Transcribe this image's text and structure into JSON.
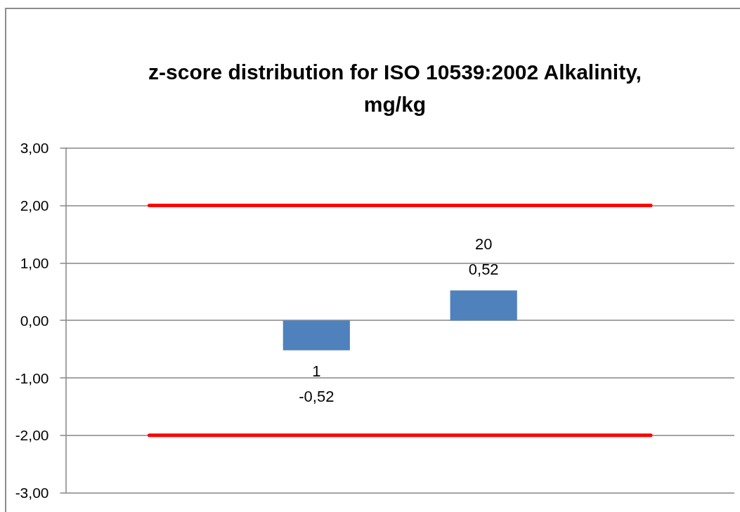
{
  "chart_data": {
    "type": "bar",
    "title": "z-score distribution for ISO 10539:2002 Alkalinity, mg/kg",
    "categories": [
      null,
      "1",
      "20",
      null
    ],
    "values": [
      null,
      -0.52,
      0.52,
      null
    ],
    "value_labels": [
      null,
      "-0,52",
      "0,52",
      null
    ],
    "color": "#4f81bd",
    "ylim": [
      -3,
      3
    ],
    "yticks": [
      {
        "value": -3,
        "label": "-3,00"
      },
      {
        "value": -2,
        "label": "-2,00"
      },
      {
        "value": -1,
        "label": "-1,00"
      },
      {
        "value": 0,
        "label": "0,00"
      },
      {
        "value": 1,
        "label": "1,00"
      },
      {
        "value": 2,
        "label": "2,00"
      },
      {
        "value": 3,
        "label": "3,00"
      }
    ],
    "grid": "y",
    "tick_labels": "y",
    "ref_lines": [
      {
        "axis": "y",
        "value": 2,
        "color": "#ff0000"
      },
      {
        "axis": "y",
        "value": -2,
        "color": "#ff0000"
      }
    ]
  }
}
